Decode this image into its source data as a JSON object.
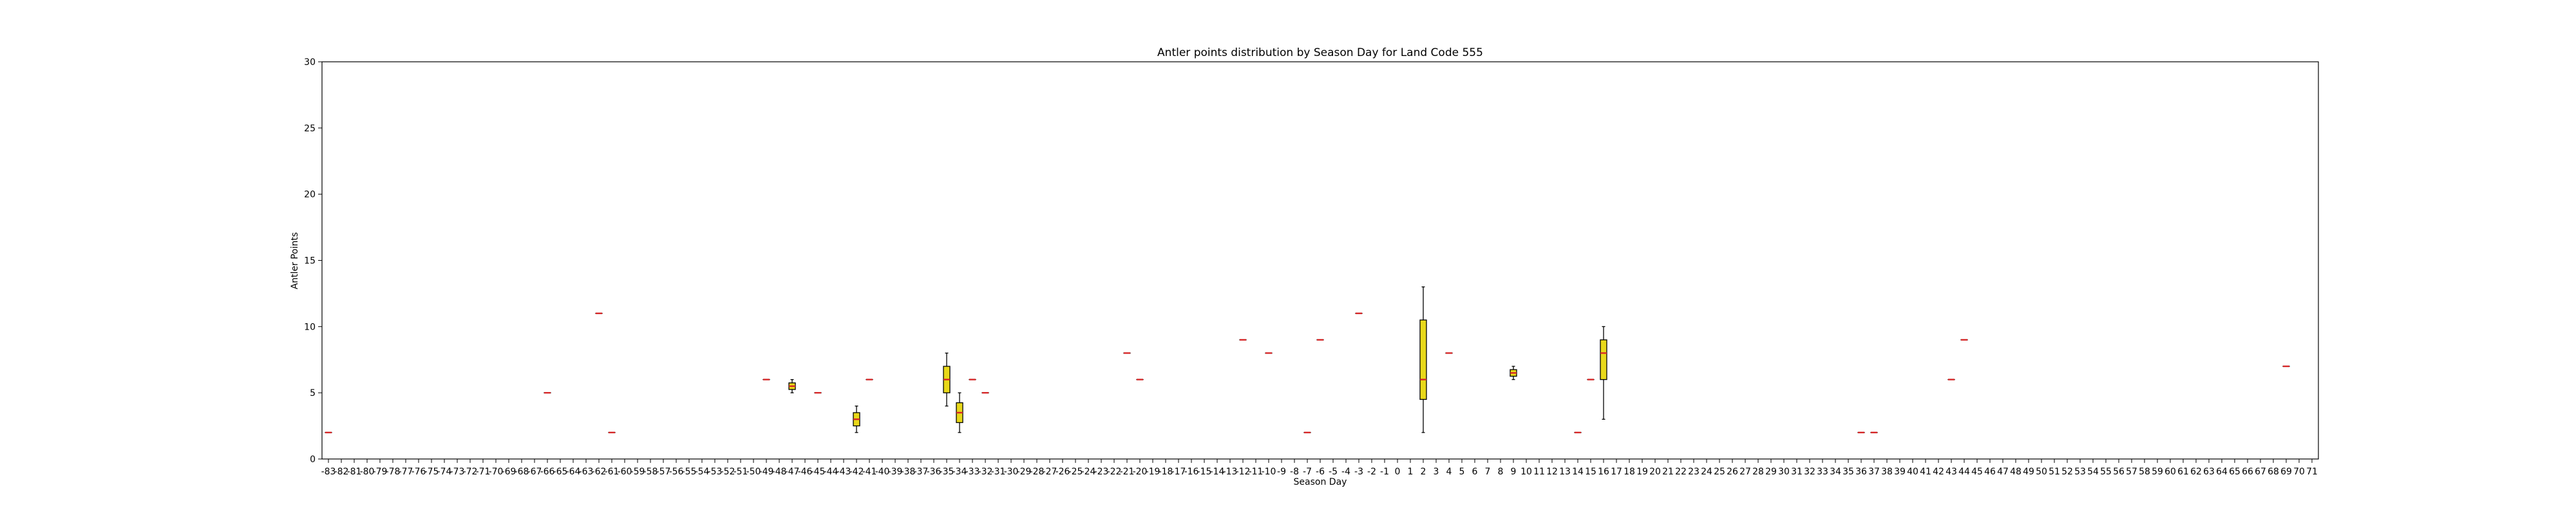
{
  "chart_data": {
    "type": "box",
    "title": "Antler points distribution by Season Day for Land Code 555",
    "xlabel": "Season Day",
    "ylabel": "Antler Points",
    "ylim": [
      0,
      30
    ],
    "yticks": [
      0,
      5,
      10,
      15,
      20,
      25,
      30
    ],
    "x_range": [
      -83,
      71
    ],
    "categories": [
      "-83",
      "-82",
      "-81",
      "-80",
      "-79",
      "-78",
      "-77",
      "-76",
      "-75",
      "-74",
      "-73",
      "-72",
      "-71",
      "-70",
      "-69",
      "-68",
      "-67",
      "-66",
      "-65",
      "-64",
      "-63",
      "-62",
      "-61",
      "-60",
      "-59",
      "-58",
      "-57",
      "-56",
      "-55",
      "-54",
      "-53",
      "-52",
      "-51",
      "-50",
      "-49",
      "-48",
      "-47",
      "-46",
      "-45",
      "-44",
      "-43",
      "-42",
      "-41",
      "-40",
      "-39",
      "-38",
      "-37",
      "-36",
      "-35",
      "-34",
      "-33",
      "-32",
      "-31",
      "-30",
      "-29",
      "-28",
      "-27",
      "-26",
      "-25",
      "-24",
      "-23",
      "-22",
      "-21",
      "-20",
      "-19",
      "-18",
      "-17",
      "-16",
      "-15",
      "-14",
      "-13",
      "-12",
      "-11",
      "-10",
      "-9",
      "-8",
      "-7",
      "-6",
      "-5",
      "-4",
      "-3",
      "-2",
      "-1",
      "0",
      "1",
      "2",
      "3",
      "4",
      "5",
      "6",
      "7",
      "8",
      "9",
      "10",
      "11",
      "12",
      "13",
      "14",
      "15",
      "16",
      "17",
      "18",
      "19",
      "20",
      "21",
      "22",
      "23",
      "24",
      "25",
      "26",
      "27",
      "28",
      "29",
      "30",
      "31",
      "32",
      "33",
      "34",
      "35",
      "36",
      "37",
      "38",
      "39",
      "40",
      "41",
      "42",
      "43",
      "44",
      "45",
      "46",
      "47",
      "48",
      "49",
      "50",
      "51",
      "52",
      "53",
      "54",
      "55",
      "56",
      "57",
      "58",
      "59",
      "60",
      "61",
      "62",
      "63",
      "64",
      "65",
      "66",
      "67",
      "68",
      "69",
      "70",
      "71"
    ],
    "box_color": "#e8d81a",
    "median_color": "#d62728",
    "boxes": [
      {
        "x": -83,
        "min": 2,
        "q1": 2,
        "median": 2,
        "q3": 2,
        "max": 2
      },
      {
        "x": -66,
        "min": 5,
        "q1": 5,
        "median": 5,
        "q3": 5,
        "max": 5
      },
      {
        "x": -62,
        "min": 11,
        "q1": 11,
        "median": 11,
        "q3": 11,
        "max": 11
      },
      {
        "x": -61,
        "min": 2,
        "q1": 2,
        "median": 2,
        "q3": 2,
        "max": 2
      },
      {
        "x": -49,
        "min": 6,
        "q1": 6,
        "median": 6,
        "q3": 6,
        "max": 6
      },
      {
        "x": -47,
        "min": 5,
        "q1": 5.25,
        "median": 5.5,
        "q3": 5.75,
        "max": 6
      },
      {
        "x": -45,
        "min": 5,
        "q1": 5,
        "median": 5,
        "q3": 5,
        "max": 5
      },
      {
        "x": -42,
        "min": 2,
        "q1": 2.5,
        "median": 3,
        "q3": 3.5,
        "max": 4
      },
      {
        "x": -41,
        "min": 6,
        "q1": 6,
        "median": 6,
        "q3": 6,
        "max": 6
      },
      {
        "x": -35,
        "min": 4,
        "q1": 5,
        "median": 6,
        "q3": 7,
        "max": 8
      },
      {
        "x": -34,
        "min": 2,
        "q1": 2.75,
        "median": 3.5,
        "q3": 4.25,
        "max": 5
      },
      {
        "x": -33,
        "min": 6,
        "q1": 6,
        "median": 6,
        "q3": 6,
        "max": 6
      },
      {
        "x": -32,
        "min": 5,
        "q1": 5,
        "median": 5,
        "q3": 5,
        "max": 5
      },
      {
        "x": -21,
        "min": 8,
        "q1": 8,
        "median": 8,
        "q3": 8,
        "max": 8
      },
      {
        "x": -20,
        "min": 6,
        "q1": 6,
        "median": 6,
        "q3": 6,
        "max": 6
      },
      {
        "x": -12,
        "min": 9,
        "q1": 9,
        "median": 9,
        "q3": 9,
        "max": 9
      },
      {
        "x": -10,
        "min": 8,
        "q1": 8,
        "median": 8,
        "q3": 8,
        "max": 8
      },
      {
        "x": -7,
        "min": 2,
        "q1": 2,
        "median": 2,
        "q3": 2,
        "max": 2
      },
      {
        "x": -6,
        "min": 9,
        "q1": 9,
        "median": 9,
        "q3": 9,
        "max": 9
      },
      {
        "x": -3,
        "min": 11,
        "q1": 11,
        "median": 11,
        "q3": 11,
        "max": 11
      },
      {
        "x": 2,
        "min": 2,
        "q1": 4.5,
        "median": 6,
        "q3": 10.5,
        "max": 13
      },
      {
        "x": 4,
        "min": 8,
        "q1": 8,
        "median": 8,
        "q3": 8,
        "max": 8
      },
      {
        "x": 9,
        "min": 6,
        "q1": 6.25,
        "median": 6.5,
        "q3": 6.75,
        "max": 7
      },
      {
        "x": 14,
        "min": 2,
        "q1": 2,
        "median": 2,
        "q3": 2,
        "max": 2
      },
      {
        "x": 15,
        "min": 6,
        "q1": 6,
        "median": 6,
        "q3": 6,
        "max": 6
      },
      {
        "x": 16,
        "min": 3,
        "q1": 6,
        "median": 8,
        "q3": 9,
        "max": 10
      },
      {
        "x": 36,
        "min": 2,
        "q1": 2,
        "median": 2,
        "q3": 2,
        "max": 2
      },
      {
        "x": 37,
        "min": 2,
        "q1": 2,
        "median": 2,
        "q3": 2,
        "max": 2
      },
      {
        "x": 43,
        "min": 6,
        "q1": 6,
        "median": 6,
        "q3": 6,
        "max": 6
      },
      {
        "x": 44,
        "min": 9,
        "q1": 9,
        "median": 9,
        "q3": 9,
        "max": 9
      },
      {
        "x": 69,
        "min": 7,
        "q1": 7,
        "median": 7,
        "q3": 7,
        "max": 7
      }
    ]
  }
}
